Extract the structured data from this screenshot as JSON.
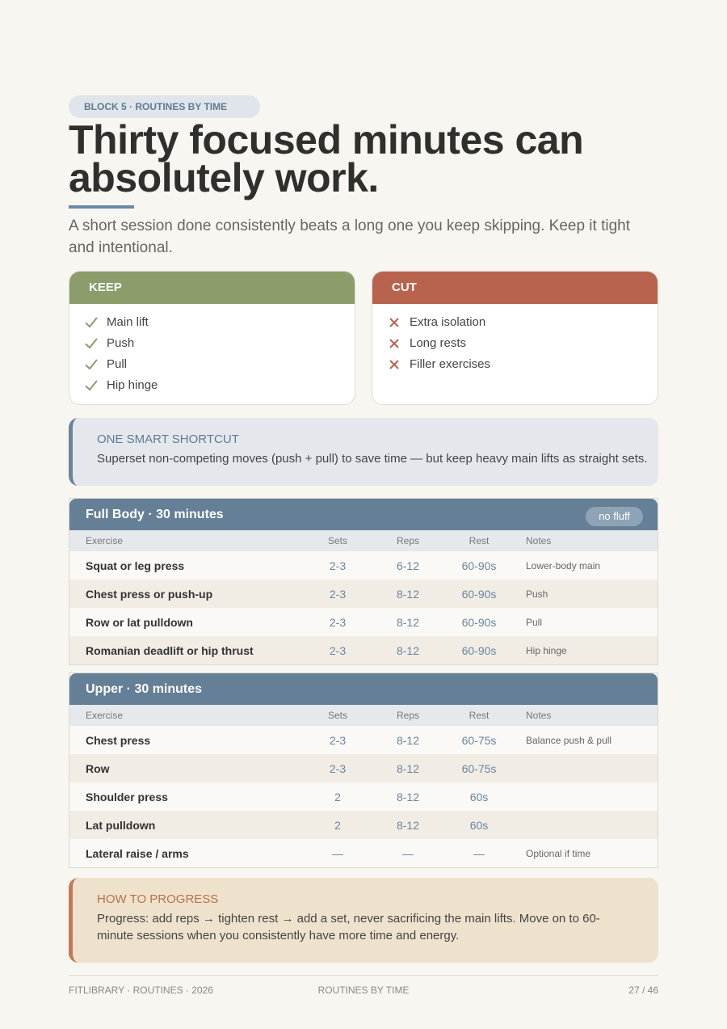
{
  "header": {
    "tag": "BLOCK 5 · ROUTINES BY TIME",
    "title": "Thirty focused minutes can absolutely work.",
    "lead": "A short session done consistently beats a long one you keep skipping. Keep it tight and intentional."
  },
  "keep": {
    "title": "KEEP",
    "items": [
      "Main lift",
      "Push",
      "Pull",
      "Hip hinge"
    ]
  },
  "cut": {
    "title": "CUT",
    "items": [
      "Extra isolation",
      "Long rests",
      "Filler exercises"
    ]
  },
  "shortcut": {
    "title": "ONE SMART SHORTCUT",
    "text": "Superset non-competing moves (push + pull) to save time — but keep heavy main lifts as straight sets."
  },
  "tables": [
    {
      "title": "Full Body · 30 minutes",
      "badge": "no fluff",
      "columns": [
        "Exercise",
        "Sets",
        "Reps",
        "Rest",
        "Notes"
      ],
      "rows": [
        [
          "Squat or leg press",
          "2-3",
          "6-12",
          "60-90s",
          "Lower-body main"
        ],
        [
          "Chest press or push-up",
          "2-3",
          "8-12",
          "60-90s",
          "Push"
        ],
        [
          "Row or lat pulldown",
          "2-3",
          "8-12",
          "60-90s",
          "Pull"
        ],
        [
          "Romanian deadlift or hip thrust",
          "2-3",
          "8-12",
          "60-90s",
          "Hip hinge"
        ]
      ]
    },
    {
      "title": "Upper · 30 minutes",
      "columns": [
        "Exercise",
        "Sets",
        "Reps",
        "Rest",
        "Notes"
      ],
      "rows": [
        [
          "Chest press",
          "2-3",
          "8-12",
          "60-75s",
          "Balance push & pull"
        ],
        [
          "Row",
          "2-3",
          "8-12",
          "60-75s"
        ],
        [
          "Shoulder press",
          "2",
          "8-12",
          "60s"
        ],
        [
          "Lat pulldown",
          "2",
          "8-12",
          "60s"
        ],
        [
          "Lateral raise / arms",
          "—",
          "—",
          "—",
          "Optional if time"
        ]
      ]
    }
  ],
  "progress": {
    "title": "HOW TO PROGRESS",
    "text": "Progress: add reps → tighten rest → add a set, never sacrificing the main lifts. Move on to 60-minute sessions when you consistently have more time and energy."
  },
  "footer": {
    "left": "FITLIBRARY · ROUTINES · 2026",
    "center": "ROUTINES BY TIME",
    "right": "27 / 46"
  }
}
